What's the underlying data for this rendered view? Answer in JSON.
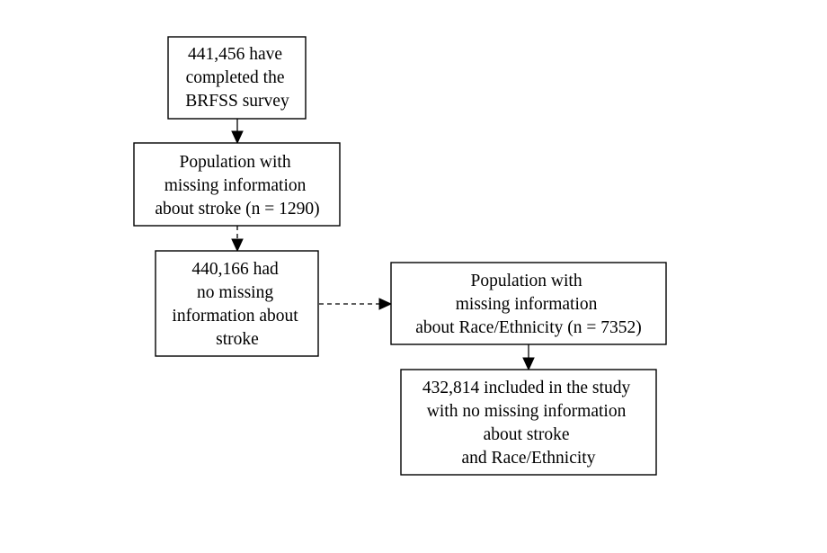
{
  "flowchart": {
    "nodes": [
      {
        "id": "completed",
        "lines": [
          "441,456 have",
          "completed the",
          "BRFSS survey"
        ]
      },
      {
        "id": "missing-stroke",
        "lines": [
          "Population with",
          "missing information",
          "about stroke (n = 1290)"
        ]
      },
      {
        "id": "no-missing-stroke",
        "lines": [
          "440,166 had",
          "no missing",
          "information about",
          "stroke"
        ]
      },
      {
        "id": "missing-race",
        "lines": [
          "Population with",
          "missing information",
          "about Race/Ethnicity (n = 7352)"
        ]
      },
      {
        "id": "included",
        "lines": [
          "432,814 included in the study",
          "with no missing information",
          "about stroke",
          "and Race/Ethnicity"
        ]
      }
    ],
    "edges": [
      {
        "from": "completed",
        "to": "missing-stroke",
        "style": "solid"
      },
      {
        "from": "missing-stroke",
        "to": "no-missing-stroke",
        "style": "dashed"
      },
      {
        "from": "no-missing-stroke",
        "to": "missing-race",
        "style": "dashed"
      },
      {
        "from": "missing-race",
        "to": "included",
        "style": "solid"
      }
    ]
  }
}
